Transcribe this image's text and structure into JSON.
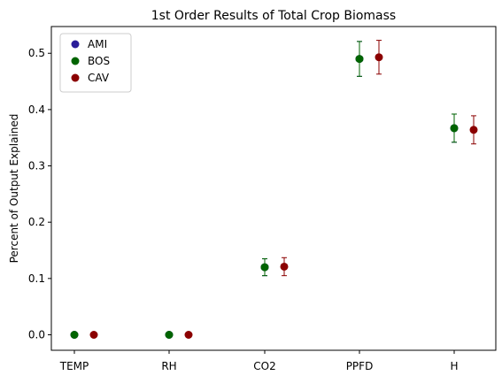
{
  "chart_data": {
    "type": "scatter",
    "title": "1st Order Results of Total Crop Biomass",
    "xlabel": "",
    "ylabel": "Percent of Output Explained",
    "categories": [
      "TEMP",
      "RH",
      "CO2",
      "PPFD",
      "H"
    ],
    "ylim": [
      -0.0275,
      0.5475
    ],
    "yticks": [
      "0.0",
      "0.1",
      "0.2",
      "0.3",
      "0.4",
      "0.5"
    ],
    "grid": false,
    "legend_position": "top-left",
    "series": [
      {
        "name": "AMI",
        "color": "#2a1d99",
        "values": [
          0.0,
          0.0,
          0.12,
          0.49,
          0.367
        ],
        "err": [
          0.0,
          0.0,
          0.015,
          0.031,
          0.025
        ]
      },
      {
        "name": "BOS",
        "color": "#006400",
        "values": [
          0.0,
          0.0,
          0.12,
          0.49,
          0.367
        ],
        "err": [
          0.0,
          0.0,
          0.015,
          0.031,
          0.025
        ]
      },
      {
        "name": "CAV",
        "color": "#8b0000",
        "values": [
          0.0,
          0.0,
          0.121,
          0.493,
          0.364
        ],
        "err": [
          0.0,
          0.0,
          0.016,
          0.03,
          0.025
        ]
      }
    ]
  }
}
